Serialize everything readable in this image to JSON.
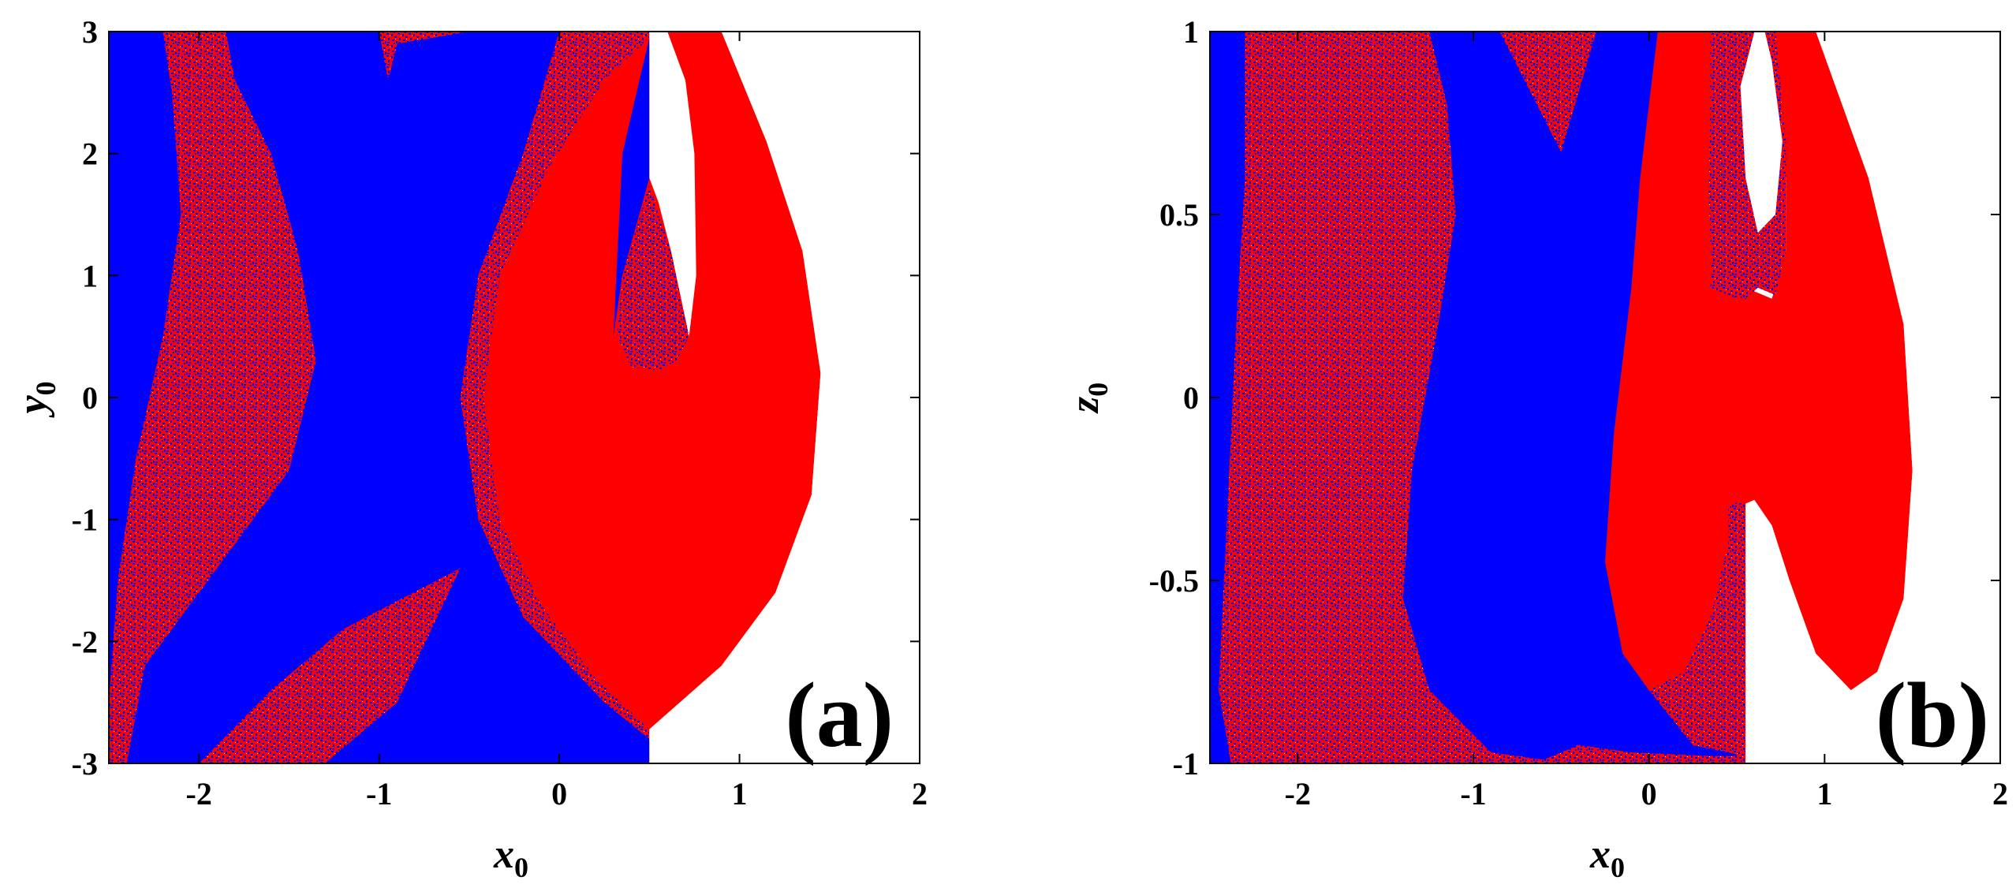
{
  "colors": {
    "basin_a": "#ff0000",
    "basin_b": "#0000ff",
    "escape": "#ffffff",
    "axis": "#000000"
  },
  "chart_data": [
    {
      "type": "heatmap",
      "panel_label": "(a)",
      "xlabel": "x",
      "xlabel_sub": "0",
      "ylabel": "y",
      "ylabel_sub": "0",
      "xlim": [
        -2.5,
        2
      ],
      "ylim": [
        -3,
        3
      ],
      "xticks": [
        -2,
        -1,
        0,
        1,
        2
      ],
      "xtick_labels": [
        "-2",
        "-1",
        "0",
        "1",
        "2"
      ],
      "yticks": [
        -3,
        -2,
        -1,
        0,
        1,
        2,
        3
      ],
      "ytick_labels": [
        "-3",
        "-2",
        "-1",
        "0",
        "1",
        "2",
        "3"
      ],
      "grid": false,
      "regions": [
        {
          "color": "mixed",
          "points": [
            [
              -2.5,
              -3
            ],
            [
              -2.5,
              3
            ],
            [
              0.5,
              3
            ],
            [
              0.5,
              -3
            ]
          ]
        },
        {
          "color": "blue",
          "points": [
            [
              -2.5,
              3
            ],
            [
              -2.2,
              3
            ],
            [
              -2.15,
              2.5
            ],
            [
              -2.1,
              1.5
            ],
            [
              -2.2,
              0.5
            ],
            [
              -2.35,
              -0.5
            ],
            [
              -2.45,
              -1.5
            ],
            [
              -2.5,
              -2.5
            ]
          ]
        },
        {
          "color": "blue",
          "points": [
            [
              -1.85,
              3
            ],
            [
              -1.0,
              3
            ],
            [
              -0.95,
              2.6
            ],
            [
              -0.9,
              2.9
            ],
            [
              -0.5,
              3
            ],
            [
              0.0,
              3
            ],
            [
              -0.2,
              2.0
            ],
            [
              -0.45,
              1.0
            ],
            [
              -0.55,
              0
            ],
            [
              -0.45,
              -1.0
            ],
            [
              -0.2,
              -1.8
            ],
            [
              0.25,
              -2.5
            ],
            [
              0.5,
              -2.8
            ],
            [
              0.5,
              -3
            ],
            [
              -1.3,
              -3
            ],
            [
              -0.9,
              -2.5
            ],
            [
              -0.55,
              -1.4
            ],
            [
              -1.2,
              -1.9
            ],
            [
              -1.6,
              -2.4
            ],
            [
              -2.0,
              -3
            ],
            [
              -2.4,
              -3
            ],
            [
              -2.3,
              -2.2
            ],
            [
              -1.9,
              -1.4
            ],
            [
              -1.5,
              -0.6
            ],
            [
              -1.35,
              0.3
            ],
            [
              -1.45,
              1.2
            ],
            [
              -1.6,
              2.0
            ],
            [
              -1.8,
              2.6
            ]
          ]
        },
        {
          "color": "red",
          "points": [
            [
              0.5,
              -2.72
            ],
            [
              0.2,
              -2.3
            ],
            [
              -0.1,
              -1.7
            ],
            [
              -0.33,
              -1.0
            ],
            [
              -0.42,
              0
            ],
            [
              -0.33,
              1.0
            ],
            [
              -0.05,
              1.9
            ],
            [
              0.25,
              2.6
            ],
            [
              0.5,
              2.95
            ],
            [
              0.6,
              3.0
            ],
            [
              0.9,
              3.0
            ],
            [
              1.15,
              2.1
            ],
            [
              1.35,
              1.2
            ],
            [
              1.45,
              0.2
            ],
            [
              1.4,
              -0.8
            ],
            [
              1.2,
              -1.6
            ],
            [
              0.9,
              -2.2
            ]
          ]
        },
        {
          "color": "blue",
          "points": [
            [
              0.5,
              2.95
            ],
            [
              0.5,
              1.8
            ],
            [
              0.35,
              1.0
            ],
            [
              0.3,
              0.5
            ],
            [
              0.35,
              2.0
            ]
          ]
        },
        {
          "color": "white",
          "points": [
            [
              0.5,
              3
            ],
            [
              0.5,
              1.8
            ],
            [
              0.55,
              1.6
            ],
            [
              0.62,
              1.2
            ],
            [
              0.72,
              0.5
            ],
            [
              0.76,
              1.0
            ],
            [
              0.75,
              2.0
            ],
            [
              0.7,
              2.6
            ],
            [
              0.6,
              3.0
            ]
          ]
        },
        {
          "color": "mixed",
          "points": [
            [
              0.5,
              1.75
            ],
            [
              0.35,
              1.0
            ],
            [
              0.32,
              0.5
            ],
            [
              0.4,
              0.25
            ],
            [
              0.55,
              0.22
            ],
            [
              0.65,
              0.3
            ],
            [
              0.72,
              0.5
            ],
            [
              0.62,
              1.2
            ]
          ]
        },
        {
          "color": "white",
          "points": [
            [
              0.5,
              -3
            ],
            [
              0.5,
              -2.72
            ],
            [
              0.9,
              -2.2
            ],
            [
              1.2,
              -1.6
            ],
            [
              1.4,
              -0.8
            ],
            [
              1.45,
              0.2
            ],
            [
              1.35,
              1.2
            ],
            [
              1.15,
              2.1
            ],
            [
              0.9,
              3.0
            ],
            [
              2,
              3
            ],
            [
              2,
              -3
            ]
          ]
        }
      ]
    },
    {
      "type": "heatmap",
      "panel_label": "(b)",
      "xlabel": "x",
      "xlabel_sub": "0",
      "ylabel": "z",
      "ylabel_sub": "0",
      "xlim": [
        -2.5,
        2
      ],
      "ylim": [
        -1,
        1
      ],
      "xticks": [
        -2,
        -1,
        0,
        1,
        2
      ],
      "xtick_labels": [
        "-2",
        "-1",
        "0",
        "1",
        "2"
      ],
      "yticks": [
        -1,
        -0.5,
        0,
        0.5,
        1
      ],
      "ytick_labels": [
        "-1",
        "-0.5",
        "0",
        "0.5",
        "1"
      ],
      "grid": false,
      "regions": [
        {
          "color": "mixed",
          "points": [
            [
              -2.5,
              -1
            ],
            [
              -2.5,
              1
            ],
            [
              0.55,
              1
            ],
            [
              0.55,
              -1
            ]
          ]
        },
        {
          "color": "blue",
          "points": [
            [
              -2.5,
              1
            ],
            [
              -2.3,
              1
            ],
            [
              -2.3,
              0.6
            ],
            [
              -2.35,
              0.2
            ],
            [
              -2.4,
              -0.3
            ],
            [
              -2.45,
              -0.8
            ],
            [
              -2.38,
              -1
            ],
            [
              -2.5,
              -1
            ]
          ]
        },
        {
          "color": "blue",
          "points": [
            [
              -1.25,
              1
            ],
            [
              -0.85,
              1
            ],
            [
              -0.5,
              0.67
            ],
            [
              -0.3,
              1
            ],
            [
              0.55,
              1
            ],
            [
              0.25,
              0.55
            ],
            [
              0.05,
              0.2
            ],
            [
              -0.05,
              -0.2
            ],
            [
              -0.05,
              -0.6
            ],
            [
              0.0,
              -0.8
            ],
            [
              0.25,
              -0.95
            ],
            [
              0.55,
              -0.98
            ],
            [
              0.35,
              -0.98
            ],
            [
              -0.1,
              -0.97
            ],
            [
              -0.4,
              -0.95
            ],
            [
              -0.6,
              -0.99
            ],
            [
              -0.9,
              -0.97
            ],
            [
              -1.25,
              -0.8
            ],
            [
              -1.4,
              -0.55
            ],
            [
              -1.35,
              -0.2
            ],
            [
              -1.2,
              0.2
            ],
            [
              -1.1,
              0.5
            ],
            [
              -1.15,
              0.8
            ]
          ]
        },
        {
          "color": "red",
          "points": [
            [
              0.05,
              1
            ],
            [
              0.62,
              1
            ],
            [
              0.52,
              0.85
            ],
            [
              0.38,
              0.55
            ],
            [
              0.35,
              0.3
            ],
            [
              0.5,
              0.27
            ],
            [
              0.55,
              0.3
            ],
            [
              0.7,
              0.27
            ],
            [
              0.78,
              0.4
            ],
            [
              0.78,
              0.6
            ],
            [
              0.7,
              0.9
            ],
            [
              0.62,
              1
            ],
            [
              0.95,
              1
            ],
            [
              1.25,
              0.6
            ],
            [
              1.45,
              0.2
            ],
            [
              1.5,
              -0.2
            ],
            [
              1.45,
              -0.55
            ],
            [
              1.3,
              -0.75
            ],
            [
              1.15,
              -0.8
            ],
            [
              0.95,
              -0.7
            ],
            [
              0.8,
              -0.5
            ],
            [
              0.7,
              -0.35
            ],
            [
              0.6,
              -0.28
            ],
            [
              0.5,
              -0.3
            ],
            [
              0.45,
              -0.4
            ],
            [
              0.35,
              -0.6
            ],
            [
              0.2,
              -0.75
            ],
            [
              0.0,
              -0.8
            ],
            [
              -0.15,
              -0.7
            ],
            [
              -0.25,
              -0.45
            ],
            [
              -0.2,
              -0.1
            ],
            [
              -0.1,
              0.3
            ],
            [
              -0.05,
              0.6
            ]
          ]
        },
        {
          "color": "mixed",
          "points": [
            [
              0.45,
              -0.3
            ],
            [
              0.52,
              -0.28
            ],
            [
              0.57,
              -0.35
            ],
            [
              0.55,
              -1
            ],
            [
              0.5,
              -1
            ],
            [
              0.46,
              -0.55
            ]
          ]
        },
        {
          "color": "white",
          "points": [
            [
              0.55,
              -0.3
            ],
            [
              0.6,
              -0.28
            ],
            [
              0.7,
              -0.35
            ],
            [
              0.8,
              -0.5
            ],
            [
              0.95,
              -0.7
            ],
            [
              1.15,
              -0.8
            ],
            [
              1.3,
              -0.75
            ],
            [
              1.45,
              -0.55
            ],
            [
              1.5,
              -0.2
            ],
            [
              1.45,
              0.2
            ],
            [
              1.25,
              0.6
            ],
            [
              0.95,
              1
            ],
            [
              2,
              1
            ],
            [
              2,
              -1
            ],
            [
              0.55,
              -1
            ]
          ]
        },
        {
          "color": "white",
          "points": [
            [
              0.6,
              1
            ],
            [
              0.52,
              0.85
            ],
            [
              0.55,
              0.6
            ],
            [
              0.62,
              0.45
            ],
            [
              0.72,
              0.5
            ],
            [
              0.76,
              0.7
            ],
            [
              0.7,
              0.92
            ],
            [
              0.66,
              1
            ]
          ]
        },
        {
          "color": "mixed",
          "points": [
            [
              0.35,
              1
            ],
            [
              0.6,
              1
            ],
            [
              0.52,
              0.85
            ],
            [
              0.55,
              0.6
            ],
            [
              0.62,
              0.45
            ],
            [
              0.72,
              0.5
            ],
            [
              0.76,
              0.7
            ],
            [
              0.7,
              0.92
            ],
            [
              0.66,
              1
            ],
            [
              0.72,
              1
            ],
            [
              0.78,
              0.7
            ],
            [
              0.78,
              0.4
            ],
            [
              0.72,
              0.28
            ],
            [
              0.62,
              0.3
            ],
            [
              0.55,
              0.27
            ],
            [
              0.45,
              0.28
            ],
            [
              0.36,
              0.32
            ],
            [
              0.34,
              0.55
            ],
            [
              0.35,
              0.8
            ]
          ]
        }
      ]
    }
  ]
}
